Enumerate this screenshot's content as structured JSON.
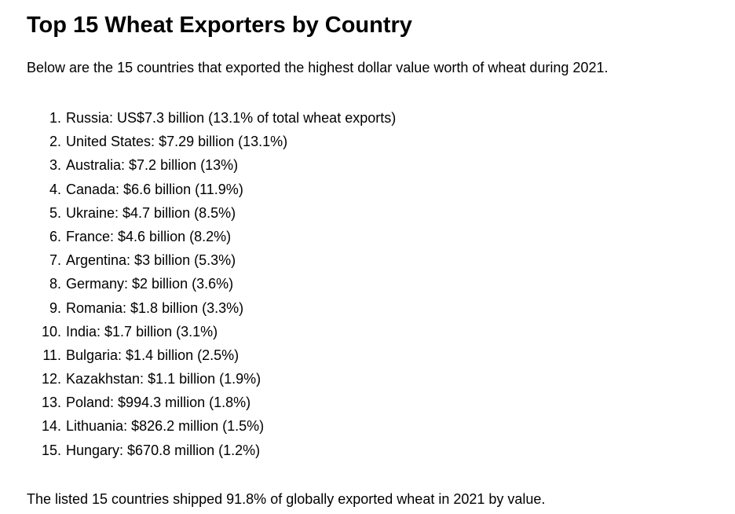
{
  "header": {
    "title": "Top 15 Wheat Exporters by Country"
  },
  "intro": "Below are the 15 countries that exported the highest dollar value worth of wheat during 2021.",
  "list": {
    "items": [
      {
        "marker": "1.",
        "text": "Russia: US$7.3 billion (13.1% of total wheat exports)"
      },
      {
        "marker": "2.",
        "text": "United States: $7.29 billion (13.1%)"
      },
      {
        "marker": "3.",
        "text": "Australia: $7.2 billion (13%)"
      },
      {
        "marker": "4.",
        "text": "Canada: $6.6 billion (11.9%)"
      },
      {
        "marker": "5.",
        "text": "Ukraine: $4.7 billion (8.5%)"
      },
      {
        "marker": "6.",
        "text": "France: $4.6 billion (8.2%)"
      },
      {
        "marker": "7.",
        "text": "Argentina: $3 billion (5.3%)"
      },
      {
        "marker": "8.",
        "text": "Germany: $2 billion (3.6%)"
      },
      {
        "marker": "9.",
        "text": "Romania: $1.8 billion (3.3%)"
      },
      {
        "marker": "10.",
        "text": "India: $1.7 billion (3.1%)"
      },
      {
        "marker": "11.",
        "text": "Bulgaria: $1.4 billion (2.5%)"
      },
      {
        "marker": "12.",
        "text": "Kazakhstan: $1.1 billion (1.9%)"
      },
      {
        "marker": "13.",
        "text": "Poland: $994.3 million (1.8%)"
      },
      {
        "marker": "14.",
        "text": "Lithuania: $826.2 million (1.5%)"
      },
      {
        "marker": "15.",
        "text": "Hungary: $670.8 million (1.2%)"
      }
    ]
  },
  "footer": "The listed 15 countries shipped 91.8% of globally exported wheat in 2021 by value."
}
